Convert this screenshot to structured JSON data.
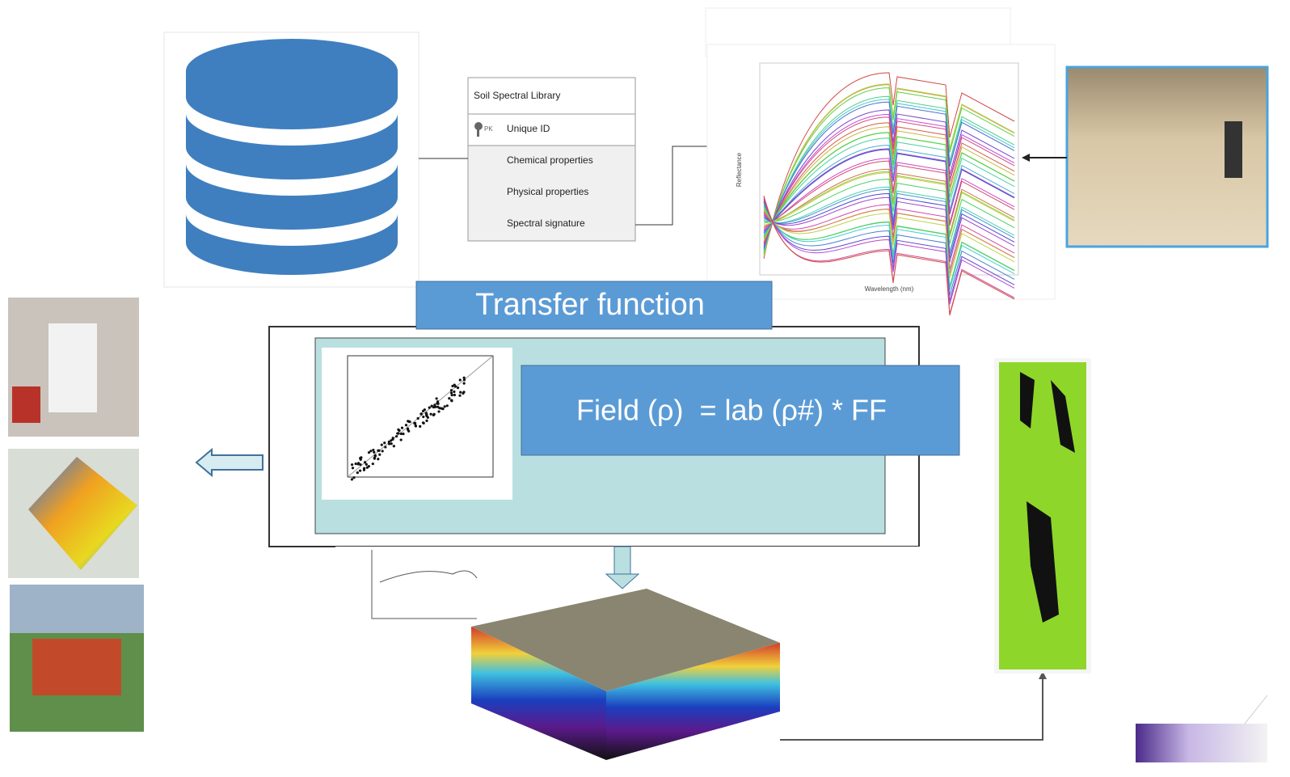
{
  "library_table": {
    "title": "Soil Spectral Library",
    "key_label": "PK",
    "key_field": "Unique ID",
    "fields": [
      "Chemical properties",
      "Physical properties",
      "Spectral signature"
    ]
  },
  "spectrum_chart": {
    "y_label": "Reflectance",
    "x_label": "Wavelength (nm)"
  },
  "transfer_label": "Transfer function",
  "formula": "Field (ρ)  = lab (ρ#) * FF"
}
